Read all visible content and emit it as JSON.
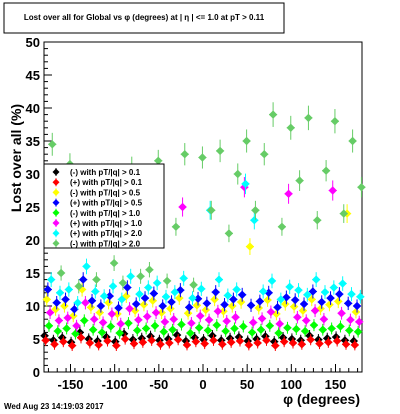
{
  "chart_data": {
    "type": "scatter",
    "title": "Lost over all for Global vs φ (degrees) at | η | <= 1.0 at pT > 0.11",
    "xlabel": "φ (degrees)",
    "ylabel": "Lost over all (%)",
    "xlim": [
      -180,
      180
    ],
    "ylim": [
      0,
      50
    ],
    "x_ticks": [
      "-150",
      "-100",
      "-50",
      "0",
      "50",
      "100",
      "150"
    ],
    "y_ticks": [
      "0",
      "5",
      "10",
      "15",
      "20",
      "25",
      "30",
      "35",
      "40",
      "45",
      "50"
    ],
    "grid": false,
    "legend_position": "left-middle",
    "footer": "Wed Aug 23 14:19:03 2017",
    "x": [
      -175,
      -165,
      -155,
      -145,
      -135,
      -125,
      -115,
      -105,
      -95,
      -85,
      -75,
      -65,
      -55,
      -45,
      -35,
      -25,
      -15,
      -5,
      5,
      15,
      25,
      35,
      45,
      55,
      65,
      75,
      85,
      95,
      105,
      115,
      125,
      135,
      145,
      155,
      165,
      175
    ],
    "series": [
      {
        "name": "(-) with pT/|q| > 0.1",
        "color": "#000000",
        "values": [
          5.5,
          4.8,
          5.2,
          4.5,
          6.0,
          5.0,
          4.7,
          5.3,
          4.6,
          5.8,
          4.9,
          5.1,
          5.4,
          4.8,
          5.0,
          5.6,
          4.7,
          5.2,
          4.9,
          5.5,
          4.8,
          5.1,
          5.3,
          4.7,
          5.0,
          5.4,
          4.6,
          5.2,
          5.0,
          4.8,
          5.5,
          4.9,
          5.1,
          5.3,
          4.8,
          4.7
        ]
      },
      {
        "name": "(+) with pT/|q| > 0.1",
        "color": "#ff0000",
        "values": [
          4.8,
          4.2,
          4.6,
          4.0,
          5.2,
          4.4,
          4.1,
          4.7,
          4.0,
          5.0,
          4.3,
          4.5,
          4.8,
          4.2,
          4.4,
          4.9,
          4.1,
          4.6,
          4.3,
          4.8,
          4.2,
          4.5,
          4.7,
          4.1,
          4.4,
          4.8,
          4.0,
          4.6,
          4.4,
          4.2,
          4.9,
          4.3,
          4.5,
          4.7,
          4.2,
          4.1
        ]
      },
      {
        "name": "(-) with pT/|q| > 0.5",
        "color": "#ffff00",
        "values": [
          11.0,
          9.5,
          10.0,
          8.5,
          12.5,
          9.8,
          9.0,
          10.5,
          8.8,
          11.5,
          9.3,
          10.2,
          10.8,
          9.0,
          9.6,
          11.2,
          8.9,
          10.1,
          9.4,
          11.0,
          9.2,
          10.0,
          10.6,
          19.0,
          9.7,
          10.9,
          8.8,
          10.3,
          9.9,
          9.3,
          11.0,
          9.6,
          10.2,
          10.7,
          24.0,
          9.1
        ]
      },
      {
        "name": "(+) with pT/|q| > 0.5",
        "color": "#0000ff",
        "values": [
          12.5,
          10.5,
          11.0,
          9.5,
          14.0,
          10.8,
          10.0,
          11.5,
          9.7,
          12.8,
          10.3,
          11.2,
          11.9,
          10.0,
          10.6,
          12.4,
          9.8,
          11.1,
          10.4,
          12.1,
          10.2,
          11.0,
          11.7,
          10.1,
          10.7,
          12.0,
          9.8,
          11.3,
          10.9,
          10.3,
          12.2,
          10.6,
          11.2,
          11.8,
          10.4,
          10.0
        ]
      },
      {
        "name": "(-) with pT/|q| > 1.0",
        "color": "#00ff00",
        "values": [
          7.0,
          6.2,
          6.6,
          5.8,
          7.8,
          6.4,
          6.0,
          6.9,
          5.9,
          7.4,
          6.3,
          6.6,
          7.0,
          6.1,
          6.4,
          7.2,
          5.9,
          6.7,
          6.3,
          7.1,
          6.2,
          6.6,
          6.9,
          6.0,
          6.4,
          7.0,
          5.9,
          6.7,
          6.5,
          6.2,
          7.1,
          6.4,
          6.6,
          6.9,
          6.3,
          6.1
        ]
      },
      {
        "name": "(+) with pT/|q| > 1.0",
        "color": "#ff00ff",
        "values": [
          9.0,
          7.8,
          8.2,
          7.0,
          10.5,
          8.0,
          7.5,
          8.8,
          7.3,
          9.6,
          7.9,
          8.4,
          9.0,
          7.6,
          8.0,
          25.0,
          7.4,
          8.5,
          7.9,
          9.2,
          7.7,
          8.3,
          28.0,
          7.5,
          8.1,
          9.1,
          7.3,
          27.0,
          8.3,
          7.8,
          9.3,
          8.0,
          27.5,
          8.9,
          7.9,
          7.6
        ]
      },
      {
        "name": "(+) with pT/|q| > 2.0",
        "color": "#00ffff",
        "values": [
          14.0,
          12.0,
          12.5,
          10.5,
          16.0,
          12.2,
          11.5,
          13.0,
          11.0,
          14.5,
          11.8,
          12.8,
          13.5,
          11.4,
          12.1,
          14.2,
          11.2,
          12.6,
          24.5,
          14.0,
          11.6,
          12.5,
          28.5,
          23.0,
          12.2,
          13.8,
          11.0,
          12.9,
          12.4,
          11.7,
          14.0,
          12.1,
          12.8,
          13.4,
          11.8,
          11.4
        ]
      },
      {
        "name": "(-) with pT/|q| > 2.0",
        "color": "#66cc66",
        "values": [
          34.5,
          15.0,
          31.5,
          13.0,
          28.0,
          14.0,
          29.0,
          16.5,
          13.5,
          31.0,
          14.5,
          15.5,
          32.0,
          13.8,
          22.0,
          33.0,
          13.2,
          32.5,
          24.5,
          33.5,
          21.0,
          30.0,
          35.0,
          24.5,
          33.0,
          39.0,
          22.0,
          37.0,
          29.0,
          38.5,
          23.0,
          30.5,
          38.0,
          24.0,
          35.0,
          28.0
        ]
      }
    ]
  }
}
